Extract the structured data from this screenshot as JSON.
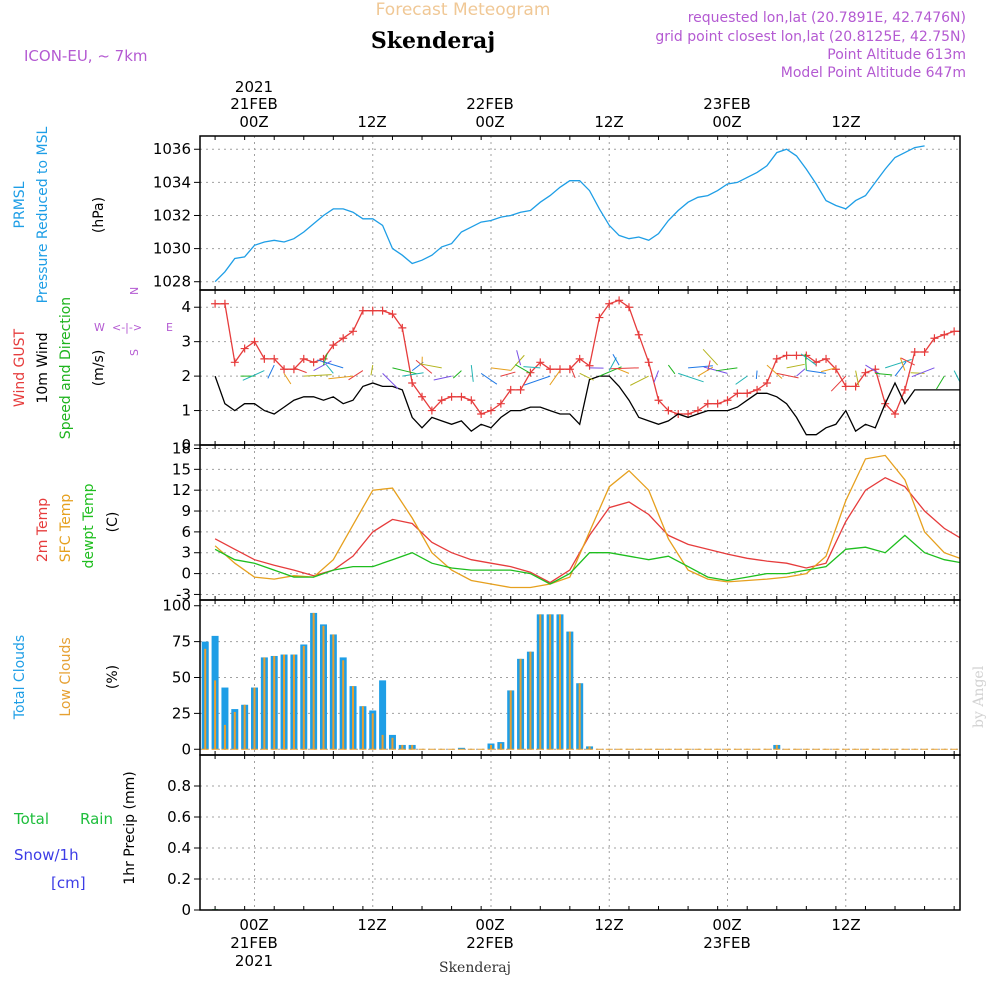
{
  "header": {
    "forecast_title": "Forecast Meteogram",
    "location": "Skenderaj",
    "model": "ICON-EU, ~ 7km",
    "requested": "requested lon,lat (20.7891E, 42.7476N)",
    "grid": "grid point closest lon,lat (20.8125E, 42.75N)",
    "point_alt": "Point Altitude 613m",
    "model_alt": "Model Point Altitude 647m",
    "footer": "Skenderaj",
    "watermark": "by Angel"
  },
  "time_axis": {
    "year": "2021",
    "ticks": [
      {
        "top_date": "21FEB",
        "label": "00Z",
        "bottom_date": "21FEB",
        "year": "2021"
      },
      {
        "label": "12Z"
      },
      {
        "top_date": "22FEB",
        "label": "00Z",
        "bottom_date": "22FEB"
      },
      {
        "label": "12Z"
      },
      {
        "top_date": "23FEB",
        "label": "00Z",
        "bottom_date": "23FEB"
      },
      {
        "label": "12Z"
      }
    ]
  },
  "colors": {
    "pressure": "#1e9ee6",
    "gust": "#e63c3c",
    "wind10m": "#000000",
    "winddir": "#1eb41e",
    "temp2m": "#e63c3c",
    "sfc": "#e6a01e",
    "dewpt": "#1ebe1e",
    "total_clouds": "#1e9ee6",
    "low_clouds": "#e6a032",
    "rain": "#1ebe3c",
    "snow": "#3c3ce6",
    "model": "#b45ad2"
  },
  "panels": {
    "pressure": {
      "label1": "PRMSL",
      "label2": "Pressure Reduced to MSL",
      "unit": "(hPa)"
    },
    "wind": {
      "label_gust": "Wind GUST",
      "label_10m": "10m Wind",
      "label_dir": "Speed and Direction",
      "unit": "(m/s)",
      "compass_w": "W",
      "compass_e": "E",
      "compass_n": "N",
      "compass_s": "S"
    },
    "temp": {
      "label_2m": "2m Temp",
      "label_sfc": "SFC Temp",
      "label_dew": "dewpt Temp",
      "unit": "(C)"
    },
    "clouds": {
      "label_total": "Total Clouds",
      "label_low": "Low Clouds",
      "unit": "(%)"
    },
    "precip": {
      "label_total": "Total",
      "label_rain": "Rain",
      "label_snow": "Snow/1h",
      "label_cm": "[cm]",
      "unit": "1hr Precip (mm)"
    }
  },
  "chart_data": [
    {
      "type": "line",
      "title": "PRMSL Pressure Reduced to MSL",
      "ylabel": "(hPa)",
      "ylim": [
        1027.5,
        1036.8
      ],
      "yticks": [
        1028,
        1030,
        1032,
        1034,
        1036
      ],
      "x_hours": [
        -4,
        -3,
        -2,
        -1,
        0,
        1,
        2,
        3,
        4,
        5,
        6,
        7,
        8,
        9,
        10,
        11,
        12,
        13,
        14,
        15,
        16,
        17,
        18,
        19,
        20,
        21,
        22,
        23,
        24,
        25,
        26,
        27,
        28,
        29,
        30,
        31,
        32,
        33,
        34,
        35,
        36,
        37,
        38,
        39,
        40,
        41,
        42,
        43,
        44,
        45,
        46,
        47,
        48,
        49,
        50,
        51,
        52,
        53,
        54,
        55,
        56,
        57,
        58,
        59,
        60,
        61,
        62,
        63,
        64,
        65,
        66,
        67,
        68,
        69,
        70,
        71,
        72
      ],
      "series": [
        {
          "name": "PRMSL",
          "values": [
            1028.0,
            1028.6,
            1029.4,
            1029.5,
            1030.2,
            1030.4,
            1030.5,
            1030.4,
            1030.6,
            1031.0,
            1031.5,
            1032.0,
            1032.4,
            1032.4,
            1032.2,
            1031.8,
            1031.8,
            1031.4,
            1030.0,
            1029.6,
            1029.1,
            1029.3,
            1029.6,
            1030.1,
            1030.3,
            1031.0,
            1031.3,
            1031.6,
            1031.7,
            1031.9,
            1032.0,
            1032.2,
            1032.3,
            1032.8,
            1033.2,
            1033.7,
            1034.1,
            1034.1,
            1033.5,
            1032.4,
            1031.4,
            1030.8,
            1030.6,
            1030.7,
            1030.5,
            1030.9,
            1031.7,
            1032.3,
            1032.8,
            1033.1,
            1033.2,
            1033.5,
            1033.9,
            1034.0,
            1034.3,
            1034.6,
            1035.0,
            1035.8,
            1036.0,
            1035.6,
            1034.8,
            1033.9,
            1032.9,
            1032.6,
            1032.4,
            1032.9,
            1033.2,
            1034.0,
            1034.8,
            1035.5,
            1035.8,
            1036.1,
            1036.2
          ]
        }
      ]
    },
    {
      "type": "line",
      "title": "Wind GUST / 10m Wind Speed and Direction",
      "ylabel": "(m/s)",
      "ylim": [
        0,
        4.5
      ],
      "yticks": [
        0,
        1,
        2,
        3,
        4
      ],
      "x_hours": [
        -4,
        -3,
        -2,
        -1,
        0,
        1,
        2,
        3,
        4,
        5,
        6,
        7,
        8,
        9,
        10,
        11,
        12,
        13,
        14,
        15,
        16,
        17,
        18,
        19,
        20,
        21,
        22,
        23,
        24,
        25,
        26,
        27,
        28,
        29,
        30,
        31,
        32,
        33,
        34,
        35,
        36,
        37,
        38,
        39,
        40,
        41,
        42,
        43,
        44,
        45,
        46,
        47,
        48,
        49,
        50,
        51,
        52,
        53,
        54,
        55,
        56,
        57,
        58,
        59,
        60,
        61,
        62,
        63,
        64,
        65,
        66,
        67,
        68,
        69,
        70,
        71,
        72
      ],
      "series": [
        {
          "name": "Wind GUST",
          "values": [
            4.1,
            4.1,
            2.4,
            2.8,
            3.0,
            2.5,
            2.5,
            2.2,
            2.2,
            2.5,
            2.4,
            2.5,
            2.9,
            3.1,
            3.3,
            3.9,
            3.9,
            3.9,
            3.8,
            3.4,
            1.8,
            1.4,
            1.0,
            1.3,
            1.4,
            1.4,
            1.3,
            0.9,
            1.0,
            1.2,
            1.6,
            1.6,
            2.1,
            2.4,
            2.2,
            2.2,
            2.2,
            2.5,
            2.3,
            3.7,
            4.1,
            4.2,
            4.0,
            3.2,
            2.4,
            1.3,
            1.0,
            0.9,
            0.9,
            1.0,
            1.2,
            1.2,
            1.3,
            1.5,
            1.5,
            1.6,
            1.8,
            2.5,
            2.6,
            2.6,
            2.6,
            2.4,
            2.5,
            2.2,
            1.7,
            1.7,
            2.1,
            2.2,
            1.2,
            0.9,
            1.6,
            2.7,
            2.7,
            3.1,
            3.2,
            3.3,
            3.3
          ]
        },
        {
          "name": "10m Wind",
          "values": [
            2.0,
            1.2,
            1.0,
            1.2,
            1.2,
            1.0,
            0.9,
            1.1,
            1.3,
            1.4,
            1.4,
            1.3,
            1.4,
            1.2,
            1.3,
            1.7,
            1.8,
            1.7,
            1.7,
            1.6,
            0.8,
            0.5,
            0.8,
            0.7,
            0.6,
            0.7,
            0.4,
            0.6,
            0.5,
            0.8,
            1.0,
            1.0,
            1.1,
            1.1,
            1.0,
            0.9,
            0.9,
            0.6,
            1.9,
            2.0,
            2.0,
            1.7,
            1.3,
            0.8,
            0.7,
            0.6,
            0.7,
            0.9,
            0.8,
            0.9,
            1.0,
            1.0,
            1.0,
            1.1,
            1.3,
            1.5,
            1.5,
            1.4,
            1.2,
            0.8,
            0.3,
            0.3,
            0.5,
            0.6,
            1.0,
            0.4,
            0.6,
            0.5,
            1.2,
            1.8,
            1.2,
            1.6,
            1.6,
            1.6,
            1.6,
            1.6,
            1.6
          ]
        }
      ]
    },
    {
      "type": "line",
      "title": "2m Temp / SFC Temp / dewpt Temp",
      "ylabel": "(C)",
      "ylim": [
        -3.8,
        18.5
      ],
      "yticks": [
        -3,
        0,
        3,
        6,
        9,
        12,
        15,
        18
      ],
      "x_hours": [
        -4,
        -2,
        0,
        2,
        4,
        6,
        8,
        10,
        12,
        14,
        16,
        18,
        20,
        22,
        24,
        26,
        28,
        30,
        32,
        34,
        36,
        38,
        40,
        42,
        44,
        46,
        48,
        50,
        52,
        54,
        56,
        58,
        60,
        62,
        64,
        66,
        68,
        70,
        72
      ],
      "series": [
        {
          "name": "2m Temp",
          "values": [
            5.0,
            3.5,
            2.0,
            1.2,
            0.5,
            -0.3,
            0.5,
            2.5,
            6.0,
            7.8,
            7.2,
            4.5,
            3.0,
            2.0,
            1.5,
            1.0,
            0.2,
            -1.3,
            0.5,
            5.5,
            9.5,
            10.3,
            8.5,
            5.5,
            4.2,
            3.5,
            2.8,
            2.2,
            1.8,
            1.5,
            0.8,
            1.5,
            7.5,
            12.0,
            13.8,
            12.5,
            9.0,
            6.5,
            4.8
          ]
        },
        {
          "name": "SFC Temp",
          "values": [
            4.0,
            1.5,
            -0.5,
            -0.8,
            -0.3,
            -0.5,
            2.0,
            7.0,
            12.0,
            12.3,
            8.0,
            3.0,
            0.5,
            -1.0,
            -1.5,
            -2.0,
            -2.0,
            -1.5,
            -0.5,
            6.0,
            12.5,
            14.8,
            12.0,
            5.0,
            0.5,
            -0.8,
            -1.2,
            -1.0,
            -0.8,
            -0.5,
            0.0,
            2.5,
            10.5,
            16.5,
            17.0,
            13.5,
            6.0,
            3.0,
            2.0
          ]
        },
        {
          "name": "dewpt Temp",
          "values": [
            3.5,
            2.0,
            1.5,
            0.5,
            -0.5,
            -0.5,
            0.5,
            1.0,
            1.0,
            2.0,
            3.0,
            1.5,
            0.8,
            0.5,
            0.5,
            0.5,
            0.0,
            -1.5,
            0.0,
            3.0,
            3.0,
            2.5,
            2.0,
            2.5,
            1.0,
            -0.5,
            -1.0,
            -0.5,
            0.0,
            0.0,
            0.5,
            1.0,
            3.5,
            3.8,
            3.0,
            5.5,
            3.0,
            2.0,
            1.5
          ]
        }
      ]
    },
    {
      "type": "bar",
      "title": "Total Clouds / Low Clouds",
      "ylabel": "(%)",
      "ylim": [
        -4,
        104
      ],
      "yticks": [
        0,
        25,
        50,
        75,
        100
      ],
      "x_hours": [
        -5,
        -4,
        -3,
        -2,
        -1,
        0,
        1,
        2,
        3,
        4,
        5,
        6,
        7,
        8,
        9,
        10,
        11,
        12,
        13,
        14,
        15,
        16,
        17,
        18,
        19,
        20,
        21,
        22,
        23,
        24,
        25,
        26,
        27,
        28,
        29,
        30,
        31,
        32,
        33,
        34,
        35,
        36,
        37,
        38,
        39,
        40,
        41,
        42,
        43,
        44,
        45,
        46,
        47,
        48,
        49,
        50,
        51,
        52,
        53,
        54,
        55,
        56,
        57,
        58,
        59,
        60,
        61,
        62,
        63,
        64,
        65,
        66,
        67,
        68,
        69,
        70,
        71,
        72,
        73
      ],
      "series": [
        {
          "name": "Total Clouds",
          "values": [
            75,
            79,
            43,
            28,
            31,
            43,
            64,
            65,
            66,
            66,
            73,
            95,
            87,
            80,
            64,
            44,
            30,
            27,
            48,
            10,
            3,
            3,
            0,
            0,
            0,
            0,
            1,
            0,
            0,
            4,
            5,
            41,
            63,
            68,
            94,
            94,
            94,
            82,
            46,
            2,
            0,
            0,
            0,
            0,
            0,
            0,
            0,
            0,
            0,
            0,
            0,
            0,
            0,
            0,
            0,
            0,
            0,
            0,
            3,
            0,
            0,
            0,
            0,
            0,
            0,
            0,
            0,
            0,
            0,
            0,
            0,
            0,
            0,
            0,
            0,
            0,
            0,
            0,
            0
          ]
        },
        {
          "name": "Low Clouds",
          "values": [
            70,
            48,
            17,
            26,
            31,
            43,
            64,
            65,
            66,
            66,
            72,
            95,
            86,
            80,
            62,
            44,
            30,
            25,
            10,
            8,
            3,
            3,
            0,
            0,
            0,
            0,
            0,
            0,
            0,
            3,
            4,
            41,
            63,
            68,
            94,
            94,
            94,
            82,
            46,
            2,
            0,
            0,
            0,
            0,
            0,
            0,
            0,
            0,
            0,
            0,
            0,
            0,
            0,
            0,
            0,
            0,
            0,
            0,
            3,
            0,
            0,
            0,
            0,
            0,
            0,
            0,
            0,
            0,
            0,
            0,
            0,
            0,
            0,
            0,
            0,
            0,
            0,
            0,
            0
          ]
        }
      ]
    },
    {
      "type": "bar",
      "title": "1hr Precip",
      "ylabel": "1hr Precip (mm)",
      "ylim": [
        0,
        1.0
      ],
      "yticks": [
        0,
        0.2,
        0.4,
        0.6,
        0.8
      ],
      "x_hours": [
        -4
      ],
      "series": [
        {
          "name": "Total Rain",
          "values": [
            0.005
          ]
        },
        {
          "name": "Snow/1h",
          "values": [
            0
          ]
        }
      ]
    }
  ]
}
